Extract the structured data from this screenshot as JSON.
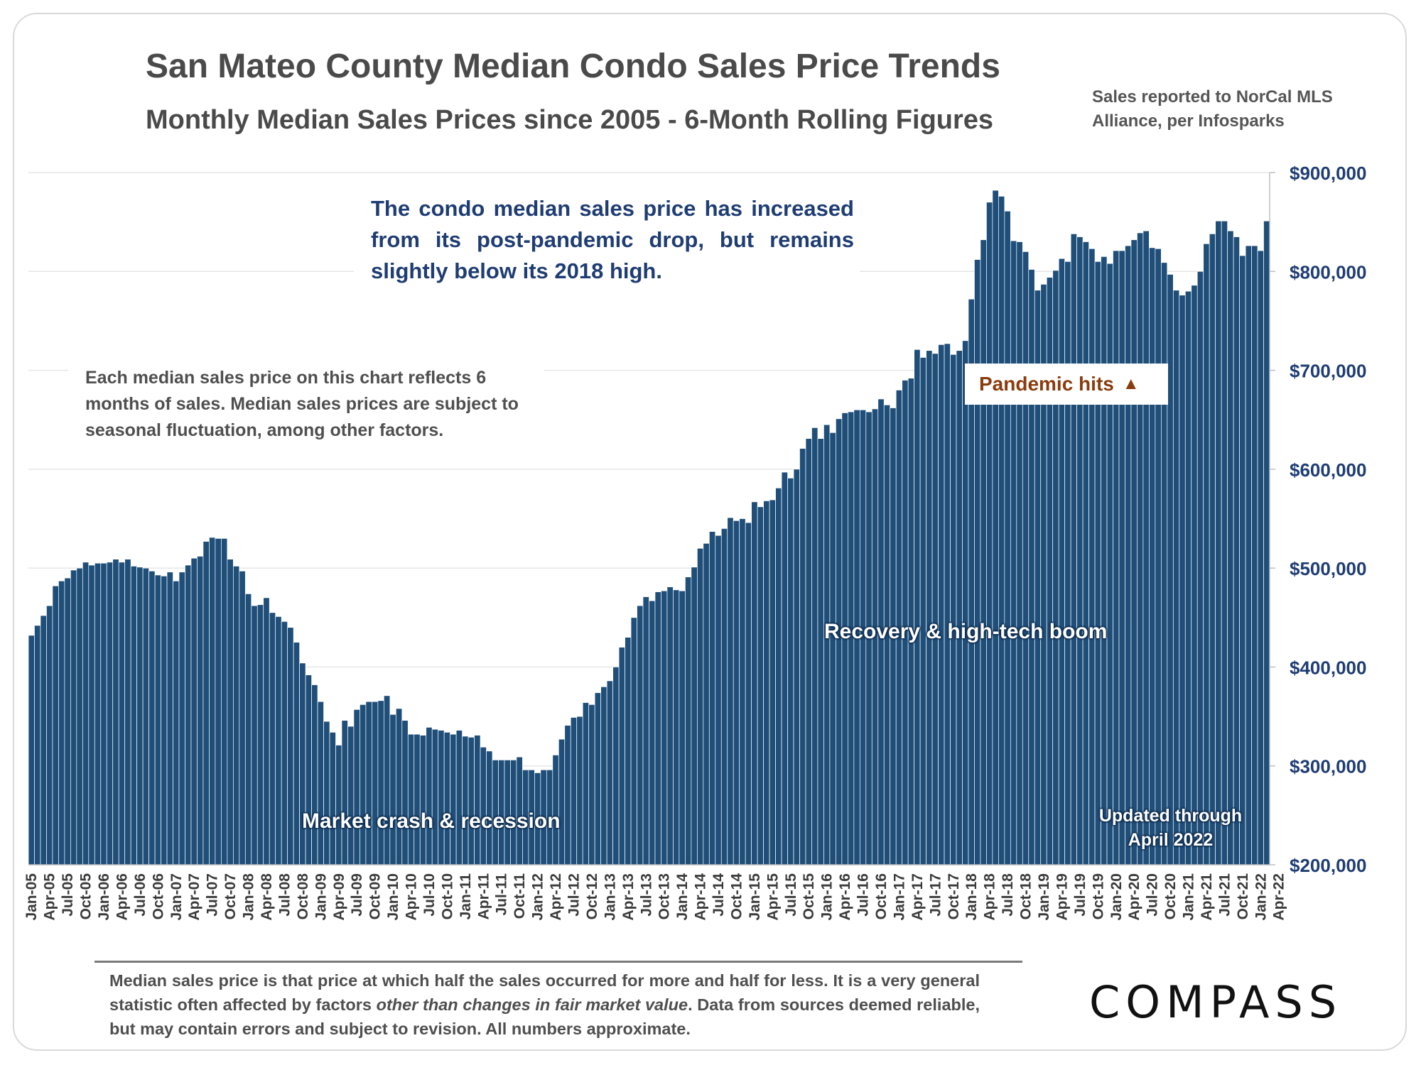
{
  "header": {
    "title": "San Mateo County Median Condo Sales Price Trends",
    "subtitle": "Monthly Median Sales Prices since 2005 - 6-Month Rolling Figures",
    "source": "Sales reported to NorCal MLS Alliance, per Infosparks"
  },
  "annotations": {
    "main_note": "The condo median sales price has increased from its post-pandemic drop, but remains slightly below its 2018 high.",
    "side_note": "Each median sales price on this chart reflects 6 months of sales. Median sales prices are subject to seasonal fluctuation, among other factors.",
    "pandemic": "Pandemic hits",
    "pandemic_icon": "triangle-up-icon",
    "crash": "Market crash & recession",
    "boom": "Recovery & high-tech boom",
    "updated": "Updated through April 2022"
  },
  "footer": {
    "disclaimer_pre": "Median sales price is that price at which half the sales occurred for more and half for less. It is a very general statistic often affected by factors ",
    "disclaimer_em": "other than changes in fair market value",
    "disclaimer_post": ". Data from sources deemed reliable, but may contain errors and subject to revision. All numbers approximate.",
    "logo": "COMPASS"
  },
  "colors": {
    "bar": "#1f4e79",
    "bar_edge": "#ffffff",
    "grid": "#e6e6e6",
    "axis_text": "#1f3d73",
    "pandemic_text": "#8a3c0d"
  },
  "chart_data": {
    "type": "bar",
    "title": "San Mateo County Median Condo Sales Price Trends",
    "subtitle": "Monthly Median Sales Prices since 2005 - 6-Month Rolling Figures",
    "xlabel": "",
    "ylabel": "",
    "ylim": [
      200000,
      900000
    ],
    "yticks": [
      900000,
      800000,
      700000,
      600000,
      500000,
      400000,
      300000,
      200000
    ],
    "ytick_labels": [
      "$900,000",
      "$800,000",
      "$700,000",
      "$600,000",
      "$500,000",
      "$400,000",
      "$300,000",
      "$200,000"
    ],
    "y_axis_position": "right",
    "grid": true,
    "legend": "none",
    "tick_labels": [
      "Jan-05",
      "Apr-05",
      "Jul-05",
      "Oct-05",
      "Jan-06",
      "Apr-06",
      "Jul-06",
      "Oct-06",
      "Jan-07",
      "Apr-07",
      "Jul-07",
      "Oct-07",
      "Jan-08",
      "Apr-08",
      "Jul-08",
      "Oct-08",
      "Jan-09",
      "Apr-09",
      "Jul-09",
      "Oct-09",
      "Jan-10",
      "Apr-10",
      "Jul-10",
      "Oct-10",
      "Jan-11",
      "Apr-11",
      "Jul-11",
      "Oct-11",
      "Jan-12",
      "Apr-12",
      "Jul-12",
      "Oct-12",
      "Jan-13",
      "Apr-13",
      "Jul-13",
      "Oct-13",
      "Jan-14",
      "Apr-14",
      "Jul-14",
      "Oct-14",
      "Jan-15",
      "Apr-15",
      "Jul-15",
      "Oct-15",
      "Jan-16",
      "Apr-16",
      "Jul-16",
      "Oct-16",
      "Jan-17",
      "Apr-17",
      "Jul-17",
      "Oct-17",
      "Jan-18",
      "Apr-18",
      "Jul-18",
      "Oct-18",
      "Jan-19",
      "Apr-19",
      "Jul-19",
      "Oct-19",
      "Jan-20",
      "Apr-20",
      "Jul-20",
      "Oct-20",
      "Jan-21",
      "Apr-21",
      "Jul-21",
      "Oct-21",
      "Jan-22",
      "Apr-22"
    ],
    "values": [
      432000,
      442000,
      452000,
      462000,
      482000,
      487000,
      490000,
      498000,
      500000,
      506000,
      503000,
      505000,
      505000,
      506000,
      509000,
      506000,
      509000,
      502000,
      501000,
      500000,
      497000,
      493000,
      492000,
      496000,
      487000,
      496000,
      503000,
      510000,
      512000,
      527000,
      531000,
      530000,
      530000,
      509000,
      502000,
      497000,
      474000,
      462000,
      463000,
      470000,
      455000,
      451000,
      446000,
      440000,
      425000,
      404000,
      392000,
      382000,
      365000,
      345000,
      334000,
      321000,
      346000,
      340000,
      357000,
      362000,
      365000,
      365000,
      366000,
      371000,
      352000,
      358000,
      346000,
      332000,
      332000,
      331000,
      339000,
      337000,
      336000,
      334000,
      332000,
      336000,
      330000,
      329000,
      331000,
      319000,
      315000,
      306000,
      306000,
      306000,
      306000,
      309000,
      296000,
      296000,
      293000,
      296000,
      296000,
      311000,
      327000,
      341000,
      349000,
      350000,
      364000,
      362000,
      374000,
      380000,
      386000,
      400000,
      420000,
      430000,
      450000,
      462000,
      471000,
      467000,
      476000,
      477000,
      481000,
      478000,
      477000,
      491000,
      501000,
      520000,
      525000,
      537000,
      533000,
      540000,
      551000,
      548000,
      550000,
      546000,
      567000,
      562000,
      568000,
      569000,
      581000,
      597000,
      591000,
      600000,
      621000,
      631000,
      642000,
      631000,
      645000,
      637000,
      651000,
      657000,
      658000,
      660000,
      660000,
      658000,
      661000,
      671000,
      665000,
      662000,
      680000,
      690000,
      692000,
      721000,
      713000,
      720000,
      717000,
      726000,
      727000,
      716000,
      720000,
      730000,
      772000,
      812000,
      832000,
      870000,
      882000,
      876000,
      861000,
      831000,
      830000,
      820000,
      802000,
      781000,
      787000,
      794000,
      801000,
      813000,
      810000,
      838000,
      835000,
      830000,
      823000,
      810000,
      815000,
      808000,
      821000,
      821000,
      826000,
      832000,
      839000,
      841000,
      824000,
      823000,
      809000,
      797000,
      781000,
      776000,
      780000,
      786000,
      800000,
      828000,
      838000,
      851000,
      851000,
      841000,
      835000,
      816000,
      826000,
      826000,
      821000,
      851000
    ]
  }
}
